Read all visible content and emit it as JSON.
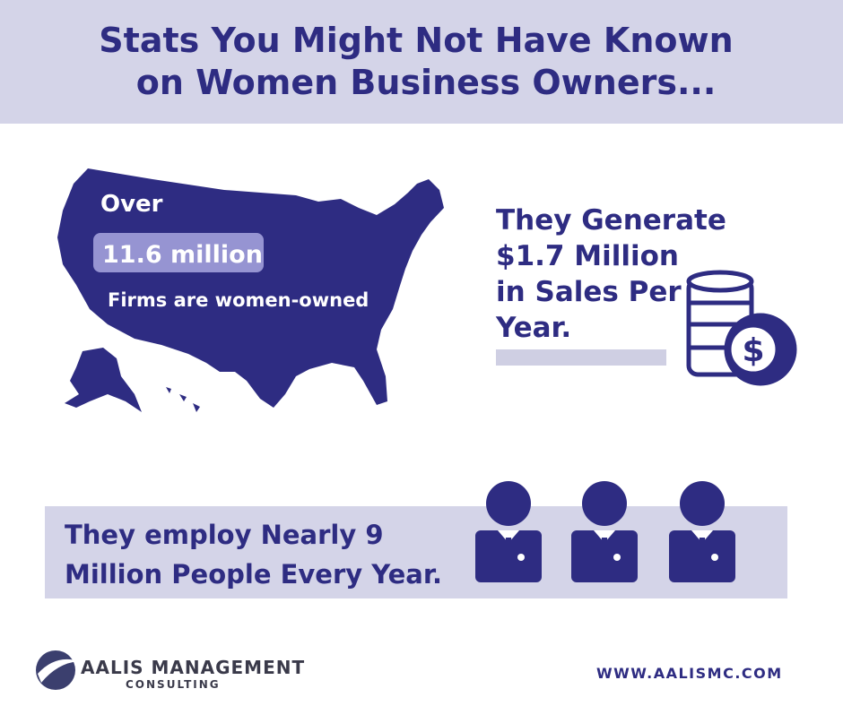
{
  "header": {
    "title_lines": [
      "Stats You Might Not Have Known",
      "on Women Business Owners..."
    ]
  },
  "map_stat": {
    "prefix": "Over",
    "highlight": "11.6 million",
    "caption": "Firms are women-owned"
  },
  "sales_stat": {
    "lines": [
      "They Generate",
      "$1.7 Million",
      "in Sales Per",
      "Year."
    ],
    "icon_symbol": "$"
  },
  "employ_stat": {
    "lines": [
      "They employ Nearly 9",
      "Million People Every Year."
    ]
  },
  "footer": {
    "logo_name": "AALIS MANAGEMENT",
    "logo_sub": "CONSULTING",
    "url": "WWW.AALISMC.COM"
  }
}
